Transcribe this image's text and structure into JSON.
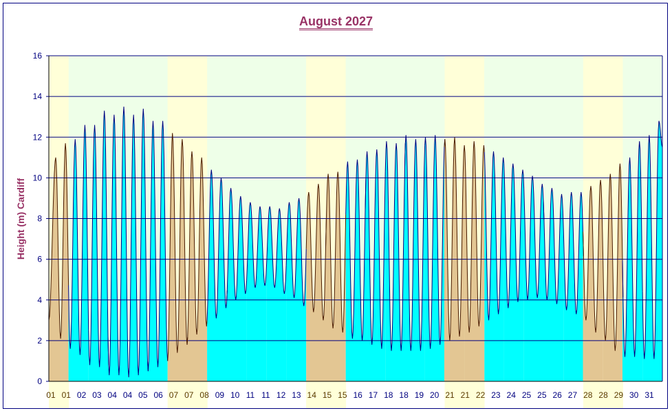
{
  "chart_data": {
    "type": "area",
    "title": "August 2027",
    "ylabel": "Height (m) Cardiff",
    "xlabel": "",
    "ylim": [
      0,
      16
    ],
    "yticks": [
      0,
      2,
      4,
      6,
      8,
      10,
      12,
      14,
      16
    ],
    "grid": true,
    "days_in_month": 31,
    "weekend_days": [
      1,
      7,
      8,
      14,
      15,
      21,
      22,
      28,
      29
    ],
    "xtick_labels": [
      "01",
      "01",
      "02",
      "03",
      "04",
      "04",
      "05",
      "06",
      "07",
      "07",
      "08",
      "09",
      "10",
      "11",
      "11",
      "12",
      "13",
      "14",
      "15",
      "15",
      "16",
      "17",
      "18",
      "18",
      "19",
      "20",
      "21",
      "21",
      "22",
      "23",
      "24",
      "25",
      "25",
      "26",
      "27",
      "28",
      "28",
      "29",
      "30",
      "31"
    ],
    "high_water_m": [
      11.0,
      11.7,
      11.9,
      12.6,
      12.6,
      13.3,
      13.1,
      13.5,
      13.1,
      13.4,
      12.8,
      12.8,
      12.2,
      11.9,
      11.3,
      11.0,
      10.4,
      10.0,
      9.5,
      9.1,
      8.8,
      8.6,
      8.6,
      8.5,
      8.8,
      9.0,
      9.3,
      9.7,
      10.2,
      10.3,
      10.8,
      10.9,
      11.3,
      11.4,
      11.8,
      11.7,
      12.1,
      11.9,
      12.0,
      12.1,
      11.9,
      12.0,
      11.6,
      11.8,
      11.6,
      11.3,
      11.0,
      10.7,
      10.4,
      10.1,
      9.7,
      9.5,
      9.2,
      9.3,
      9.3,
      9.6,
      9.9,
      10.2,
      10.7,
      11.0,
      11.8,
      12.1,
      12.8
    ],
    "low_water_m": [
      3.0,
      2.1,
      1.6,
      1.3,
      0.8,
      0.7,
      0.3,
      0.3,
      0.2,
      0.3,
      0.5,
      0.7,
      1.0,
      1.4,
      1.8,
      2.3,
      2.7,
      3.1,
      3.6,
      4.0,
      4.3,
      4.6,
      4.7,
      4.6,
      4.3,
      4.1,
      3.7,
      3.4,
      3.0,
      2.6,
      2.4,
      2.1,
      2.0,
      1.8,
      1.6,
      1.5,
      1.5,
      1.5,
      1.5,
      1.6,
      1.8,
      2.0,
      2.2,
      2.4,
      2.7,
      3.0,
      3.3,
      3.6,
      3.9,
      4.0,
      4.1,
      4.0,
      3.8,
      3.5,
      3.3,
      3.0,
      2.4,
      2.0,
      1.5,
      1.2,
      1.2,
      1.1,
      1.1
    ],
    "colors": {
      "weekday_fill": "#00FFFF",
      "weekend_fill": "#E3C693",
      "weekday_bg": "#EEFFE8",
      "weekend_bg": "#FFFFD8",
      "weekday_line": "#000080",
      "weekend_line": "#4A1A00",
      "weekday_label": "#000080",
      "weekend_label": "#5A3A00",
      "grid": "#000080",
      "title": "#993366"
    }
  }
}
